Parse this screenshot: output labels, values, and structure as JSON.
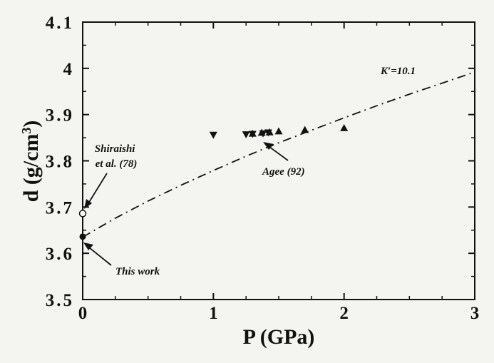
{
  "chart_data": {
    "type": "scatter",
    "title": "",
    "xlabel": "P (GPa)",
    "ylabel_main": "d  (g/cm",
    "ylabel_sup": "3",
    "ylabel_close": ")",
    "xlim": [
      0,
      3
    ],
    "ylim": [
      3.5,
      4.1
    ],
    "x_ticks": [
      {
        "v": 0,
        "label": "0"
      },
      {
        "v": 1,
        "label": "1"
      },
      {
        "v": 2,
        "label": "2"
      },
      {
        "v": 3,
        "label": "3"
      }
    ],
    "y_ticks": [
      {
        "v": 3.5,
        "label": "3.5"
      },
      {
        "v": 3.6,
        "label": "3.6"
      },
      {
        "v": 3.7,
        "label": "3.7"
      },
      {
        "v": 3.8,
        "label": "3.8"
      },
      {
        "v": 3.9,
        "label": "3.9"
      },
      {
        "v": 4.0,
        "label": "4"
      },
      {
        "v": 4.1,
        "label": "4.1"
      }
    ],
    "grid": false,
    "curve": {
      "label": "K′=10.1",
      "style": "dash-dot",
      "x": [
        0,
        0.25,
        0.5,
        0.75,
        1.0,
        1.25,
        1.5,
        1.75,
        2.0,
        2.25,
        2.5,
        2.75,
        3.0
      ],
      "y": [
        3.635,
        3.676,
        3.713,
        3.747,
        3.779,
        3.81,
        3.839,
        3.866,
        3.893,
        3.919,
        3.944,
        3.968,
        3.992
      ]
    },
    "series": [
      {
        "name": "",
        "marker": "triangle-down",
        "points": [
          [
            1.0,
            3.856
          ],
          [
            1.25,
            3.857
          ],
          [
            1.3,
            3.858
          ],
          [
            1.38,
            3.859
          ],
          [
            1.42,
            3.861
          ]
        ]
      },
      {
        "name": "",
        "marker": "triangle-up",
        "points": [
          [
            1.3,
            3.859
          ],
          [
            1.37,
            3.861
          ],
          [
            1.43,
            3.862
          ],
          [
            1.5,
            3.864
          ],
          [
            1.7,
            3.867
          ],
          [
            2.0,
            3.871
          ]
        ]
      },
      {
        "name": "Shiraishi et al. (78)",
        "marker": "circle-open",
        "points": [
          [
            0,
            3.686
          ]
        ]
      },
      {
        "name": "This work",
        "marker": "circle-filled",
        "points": [
          [
            0,
            3.636
          ]
        ]
      }
    ],
    "annotations": [
      {
        "id": "shiraishi",
        "lines": [
          "Shiraishi",
          "et al. (78)"
        ]
      },
      {
        "id": "agee",
        "lines": [
          "Agee (92)"
        ]
      },
      {
        "id": "thiswork",
        "lines": [
          "This work"
        ]
      }
    ]
  }
}
